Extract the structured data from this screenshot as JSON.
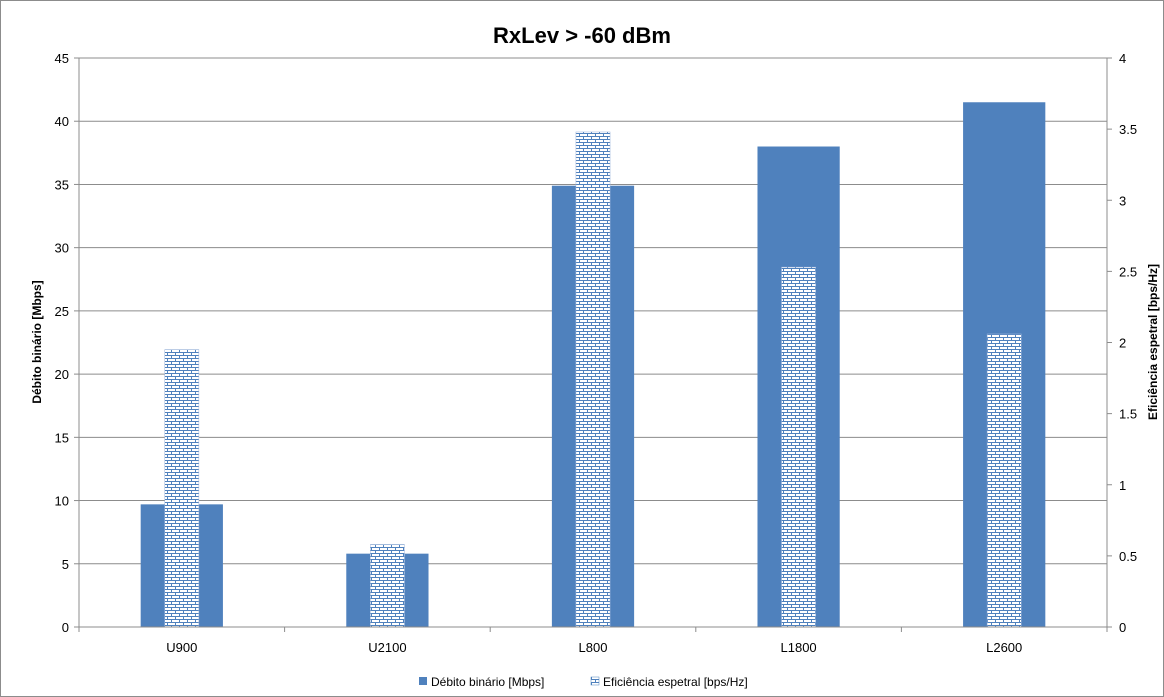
{
  "chart_data": {
    "type": "bar",
    "title": "RxLev > -60 dBm",
    "categories": [
      "U900",
      "U2100",
      "L800",
      "L1800",
      "L2600"
    ],
    "series": [
      {
        "name": "Débito binário [Mbps]",
        "axis": "left",
        "color": "#4f81bd",
        "values": [
          9.7,
          5.8,
          34.9,
          38.0,
          41.5
        ]
      },
      {
        "name": "Eficiência espetral [bps/Hz]",
        "axis": "right",
        "color": "#c5d3ea",
        "pattern": "brick",
        "values": [
          1.95,
          0.58,
          3.48,
          2.53,
          2.06
        ]
      }
    ],
    "ylabel": "Débito binário [Mbps]",
    "y2label": "Eficiência espetral [bps/Hz]",
    "ylim": [
      0,
      45
    ],
    "yticks": [
      "0",
      "5",
      "10",
      "15",
      "20",
      "25",
      "30",
      "35",
      "40",
      "45"
    ],
    "y2lim": [
      0,
      4
    ],
    "y2ticks": [
      "0",
      "0.5",
      "1",
      "1.5",
      "2",
      "2.5",
      "3",
      "3.5",
      "4"
    ],
    "grid": true,
    "legend_position": "bottom"
  }
}
